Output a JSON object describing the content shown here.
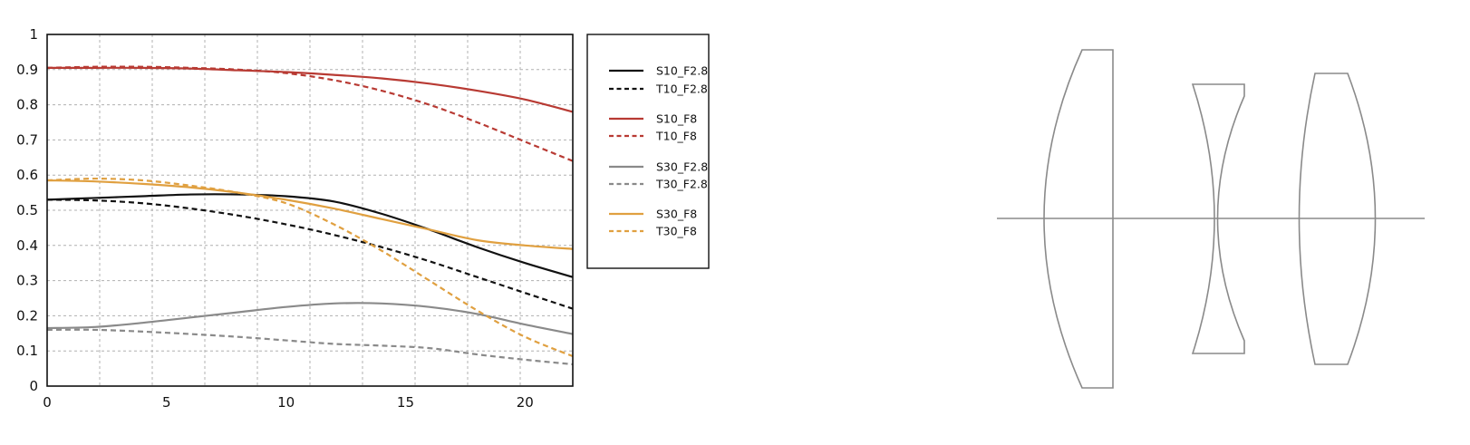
{
  "chart_data": {
    "type": "line",
    "xlim": [
      0,
      22
    ],
    "ylim": [
      0,
      1
    ],
    "x_ticks": [
      "0",
      "5",
      "10",
      "15",
      "20"
    ],
    "x_tick_values": [
      0,
      5,
      10,
      15,
      20
    ],
    "y_ticks": [
      "0",
      "0.1",
      "0.2",
      "0.3",
      "0.4",
      "0.5",
      "0.6",
      "0.7",
      "0.8",
      "0.9",
      "1"
    ],
    "y_tick_values": [
      0,
      0.1,
      0.2,
      0.3,
      0.4,
      0.5,
      0.6,
      0.7,
      0.8,
      0.9,
      1
    ],
    "grid": "dashed, every 2.2 x units and 0.1 y units",
    "legend_position": "right",
    "series": [
      {
        "name": "S10_F2.8",
        "color": "#111111",
        "style": "solid",
        "points": [
          [
            0,
            0.53
          ],
          [
            2,
            0.535
          ],
          [
            4,
            0.54
          ],
          [
            6,
            0.545
          ],
          [
            8,
            0.545
          ],
          [
            10,
            0.54
          ],
          [
            12,
            0.525
          ],
          [
            14,
            0.49
          ],
          [
            16,
            0.445
          ],
          [
            18,
            0.395
          ],
          [
            20,
            0.35
          ],
          [
            22,
            0.31
          ]
        ]
      },
      {
        "name": "T10_F2.8",
        "color": "#111111",
        "style": "dashed",
        "points": [
          [
            0,
            0.53
          ],
          [
            2,
            0.528
          ],
          [
            4,
            0.52
          ],
          [
            6,
            0.505
          ],
          [
            8,
            0.485
          ],
          [
            10,
            0.46
          ],
          [
            12,
            0.43
          ],
          [
            14,
            0.395
          ],
          [
            16,
            0.355
          ],
          [
            18,
            0.31
          ],
          [
            20,
            0.265
          ],
          [
            22,
            0.22
          ]
        ]
      },
      {
        "name": "S10_F8",
        "color": "#b83a33",
        "style": "solid",
        "points": [
          [
            0,
            0.905
          ],
          [
            2,
            0.905
          ],
          [
            4,
            0.905
          ],
          [
            6,
            0.903
          ],
          [
            8,
            0.898
          ],
          [
            10,
            0.893
          ],
          [
            12,
            0.885
          ],
          [
            14,
            0.875
          ],
          [
            16,
            0.86
          ],
          [
            18,
            0.84
          ],
          [
            20,
            0.815
          ],
          [
            22,
            0.78
          ]
        ]
      },
      {
        "name": "T10_F8",
        "color": "#b83a33",
        "style": "dashed",
        "points": [
          [
            0,
            0.905
          ],
          [
            2,
            0.908
          ],
          [
            4,
            0.908
          ],
          [
            6,
            0.905
          ],
          [
            8,
            0.9
          ],
          [
            10,
            0.89
          ],
          [
            12,
            0.87
          ],
          [
            14,
            0.84
          ],
          [
            16,
            0.8
          ],
          [
            18,
            0.75
          ],
          [
            20,
            0.695
          ],
          [
            22,
            0.64
          ]
        ]
      },
      {
        "name": "S30_F2.8",
        "color": "#8a8a8a",
        "style": "solid",
        "points": [
          [
            0,
            0.165
          ],
          [
            2,
            0.168
          ],
          [
            4,
            0.18
          ],
          [
            6,
            0.195
          ],
          [
            8,
            0.21
          ],
          [
            10,
            0.225
          ],
          [
            12,
            0.235
          ],
          [
            14,
            0.235
          ],
          [
            16,
            0.225
          ],
          [
            18,
            0.205
          ],
          [
            20,
            0.175
          ],
          [
            22,
            0.148
          ]
        ]
      },
      {
        "name": "T30_F2.8",
        "color": "#8a8a8a",
        "style": "dashed",
        "points": [
          [
            0,
            0.16
          ],
          [
            2,
            0.16
          ],
          [
            4,
            0.155
          ],
          [
            6,
            0.148
          ],
          [
            8,
            0.14
          ],
          [
            10,
            0.13
          ],
          [
            12,
            0.12
          ],
          [
            14,
            0.115
          ],
          [
            16,
            0.108
          ],
          [
            18,
            0.09
          ],
          [
            20,
            0.075
          ],
          [
            22,
            0.062
          ]
        ]
      },
      {
        "name": "S30_F8",
        "color": "#e0a040",
        "style": "solid",
        "points": [
          [
            0,
            0.585
          ],
          [
            2,
            0.582
          ],
          [
            4,
            0.575
          ],
          [
            6,
            0.565
          ],
          [
            8,
            0.55
          ],
          [
            10,
            0.53
          ],
          [
            12,
            0.505
          ],
          [
            14,
            0.475
          ],
          [
            16,
            0.445
          ],
          [
            18,
            0.415
          ],
          [
            20,
            0.4
          ],
          [
            22,
            0.39
          ]
        ]
      },
      {
        "name": "T30_F8",
        "color": "#e0a040",
        "style": "dashed",
        "points": [
          [
            0,
            0.585
          ],
          [
            2,
            0.59
          ],
          [
            4,
            0.585
          ],
          [
            6,
            0.57
          ],
          [
            8,
            0.55
          ],
          [
            10,
            0.52
          ],
          [
            12,
            0.46
          ],
          [
            14,
            0.385
          ],
          [
            16,
            0.3
          ],
          [
            18,
            0.215
          ],
          [
            20,
            0.14
          ],
          [
            22,
            0.085
          ]
        ]
      }
    ]
  },
  "lens_diagram": {
    "stroke_color": "#8a8a8a",
    "elements": [
      "optical-axis",
      "plano-convex-lens",
      "biconcave-lens",
      "biconvex-lens"
    ]
  }
}
